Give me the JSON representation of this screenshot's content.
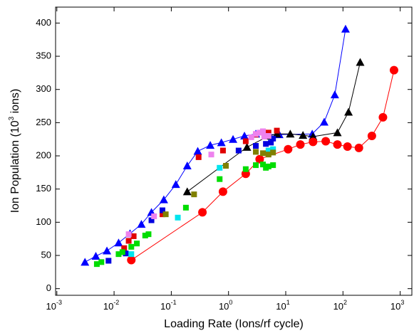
{
  "chart_data": {
    "type": "scatter",
    "xlabel": "Loading Rate (Ions/rf cycle)",
    "ylabel": "Ion Population (10",
    "ylabel_sup": "3",
    "ylabel_end": " ions)",
    "xscale": "log",
    "xlim": [
      0.00095,
      1600
    ],
    "ylim": [
      -10,
      424
    ],
    "xticks": [
      {
        "value": 0.001,
        "label": "10",
        "exponent": "-3"
      },
      {
        "value": 0.01,
        "label": "10",
        "exponent": "-2"
      },
      {
        "value": 0.1,
        "label": "10",
        "exponent": "-1"
      },
      {
        "value": 1,
        "label": "10",
        "exponent": "0"
      },
      {
        "value": 10,
        "label": "10",
        "exponent": "1"
      },
      {
        "value": 100,
        "label": "10",
        "exponent": "2"
      },
      {
        "value": 1000,
        "label": "10",
        "exponent": "3"
      }
    ],
    "yticks": [
      0,
      50,
      100,
      150,
      200,
      250,
      300,
      350,
      400
    ],
    "series": [
      {
        "color": "#0000ff",
        "marker": "triangle",
        "line": true,
        "x": [
          0.0031,
          0.0048,
          0.0075,
          0.012,
          0.019,
          0.03,
          0.045,
          0.074,
          0.12,
          0.19,
          0.29,
          0.48,
          0.75,
          1.2,
          1.9,
          3,
          4.9,
          7.7,
          29,
          47,
          72,
          111
        ],
        "values": [
          40,
          49,
          57,
          69,
          83,
          97,
          115,
          134,
          157,
          185,
          207,
          216,
          220,
          225,
          230,
          233,
          232,
          232,
          233,
          251,
          292,
          391
        ]
      },
      {
        "color": "#000000",
        "marker": "triangle",
        "line": true,
        "x": [
          0.19,
          2.1,
          5,
          7,
          12,
          20,
          30,
          80,
          125,
          200
        ],
        "values": [
          146,
          213,
          230,
          233,
          233,
          231,
          229,
          235,
          266,
          341
        ]
      },
      {
        "color": "#ff0000",
        "marker": "circle",
        "line": true,
        "x": [
          0.02,
          0.35,
          0.8,
          2,
          3.5,
          11,
          18,
          30,
          50,
          80,
          120,
          190,
          320,
          500,
          780
        ],
        "values": [
          43,
          115,
          146,
          173,
          195,
          210,
          217,
          221,
          222,
          217,
          214,
          212,
          230,
          258,
          329
        ]
      },
      {
        "color": "#e00000",
        "marker": "square",
        "line": false,
        "x": [
          0.015,
          0.018,
          0.022,
          0.07,
          0.3,
          0.8,
          2,
          3,
          4,
          5,
          7
        ],
        "values": [
          61,
          72,
          79,
          112,
          198,
          208,
          222,
          232,
          236,
          235,
          238
        ]
      },
      {
        "color": "#0000e0",
        "marker": "square",
        "line": false,
        "x": [
          0.008,
          0.016,
          0.045,
          0.07,
          1.5,
          3,
          4.5,
          5.5,
          6
        ],
        "values": [
          42,
          53,
          103,
          118,
          208,
          215,
          218,
          220,
          226
        ]
      },
      {
        "color": "#ee82ee",
        "marker": "square",
        "line": false,
        "x": [
          0.018,
          0.05,
          0.5,
          2.5,
          3,
          3.5,
          4,
          4.2,
          5
        ],
        "values": [
          82,
          109,
          202,
          228,
          233,
          235,
          237,
          229,
          230
        ]
      },
      {
        "color": "#00e5ee",
        "marker": "square",
        "line": false,
        "x": [
          0.02,
          0.13,
          0.7,
          5,
          6
        ],
        "values": [
          52,
          107,
          182,
          208,
          210
        ]
      },
      {
        "color": "#808000",
        "marker": "square",
        "line": false,
        "x": [
          0.08,
          0.25,
          0.9,
          3,
          4,
          5,
          6
        ],
        "values": [
          112,
          142,
          185,
          206,
          204,
          202,
          205
        ]
      },
      {
        "color": "#00dd00",
        "marker": "square",
        "line": false,
        "x": [
          0.005,
          0.006,
          0.012,
          0.014,
          0.02,
          0.025,
          0.035,
          0.04,
          0.18,
          0.7,
          2,
          3,
          4,
          4.5,
          5,
          6
        ],
        "values": [
          37,
          40,
          52,
          55,
          63,
          68,
          80,
          82,
          122,
          165,
          180,
          186,
          187,
          182,
          184,
          186
        ]
      }
    ]
  }
}
